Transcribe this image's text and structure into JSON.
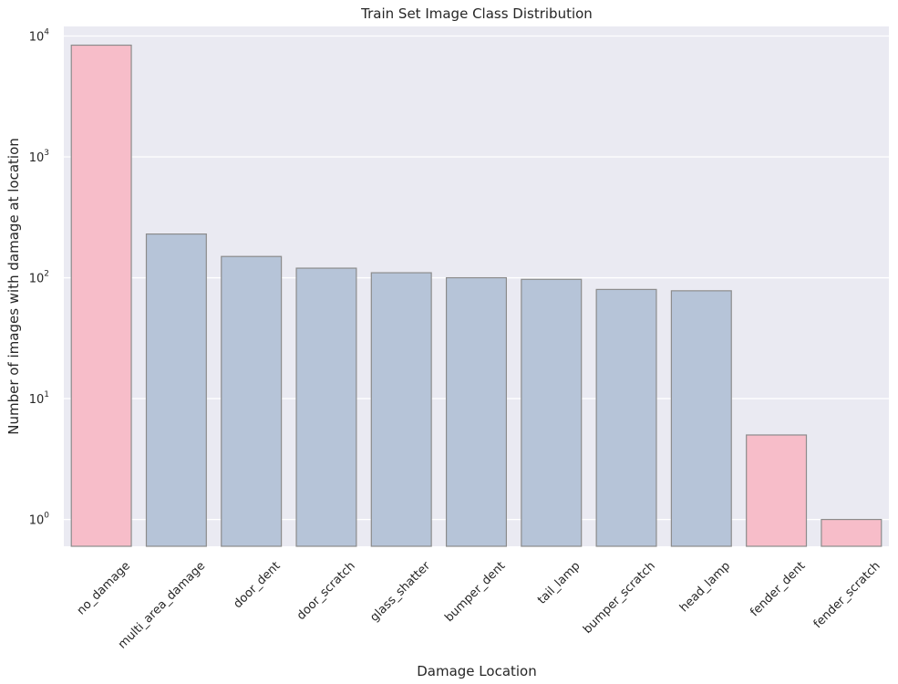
{
  "chart_data": {
    "type": "bar",
    "title": "Train Set Image Class Distribution",
    "xlabel": "Damage Location",
    "ylabel": "Number of images with damage at location",
    "yscale": "log",
    "ylim": [
      0.6,
      12000
    ],
    "yticks": [
      {
        "value": 1,
        "base": "10",
        "exp": "0"
      },
      {
        "value": 10,
        "base": "10",
        "exp": "1"
      },
      {
        "value": 100,
        "base": "10",
        "exp": "2"
      },
      {
        "value": 1000,
        "base": "10",
        "exp": "3"
      },
      {
        "value": 10000,
        "base": "10",
        "exp": "4"
      }
    ],
    "categories": [
      "no_damage",
      "multi_area_damage",
      "door_dent",
      "door_scratch",
      "glass_shatter",
      "bumper_dent",
      "tail_lamp",
      "bumper_scratch",
      "head_lamp",
      "fender_dent",
      "fender_scratch"
    ],
    "values": [
      8400,
      230,
      150,
      120,
      110,
      100,
      97,
      80,
      78,
      5,
      1
    ],
    "bar_colors": [
      "#f7bdc9",
      "#b6c4d8",
      "#b6c4d8",
      "#b6c4d8",
      "#b6c4d8",
      "#b6c4d8",
      "#b6c4d8",
      "#b6c4d8",
      "#b6c4d8",
      "#f7bdc9",
      "#f7bdc9"
    ],
    "bar_edge_color": "#8c8c8c",
    "background_color": "#eaeaf2",
    "grid": true,
    "grid_color": "#ffffff"
  }
}
